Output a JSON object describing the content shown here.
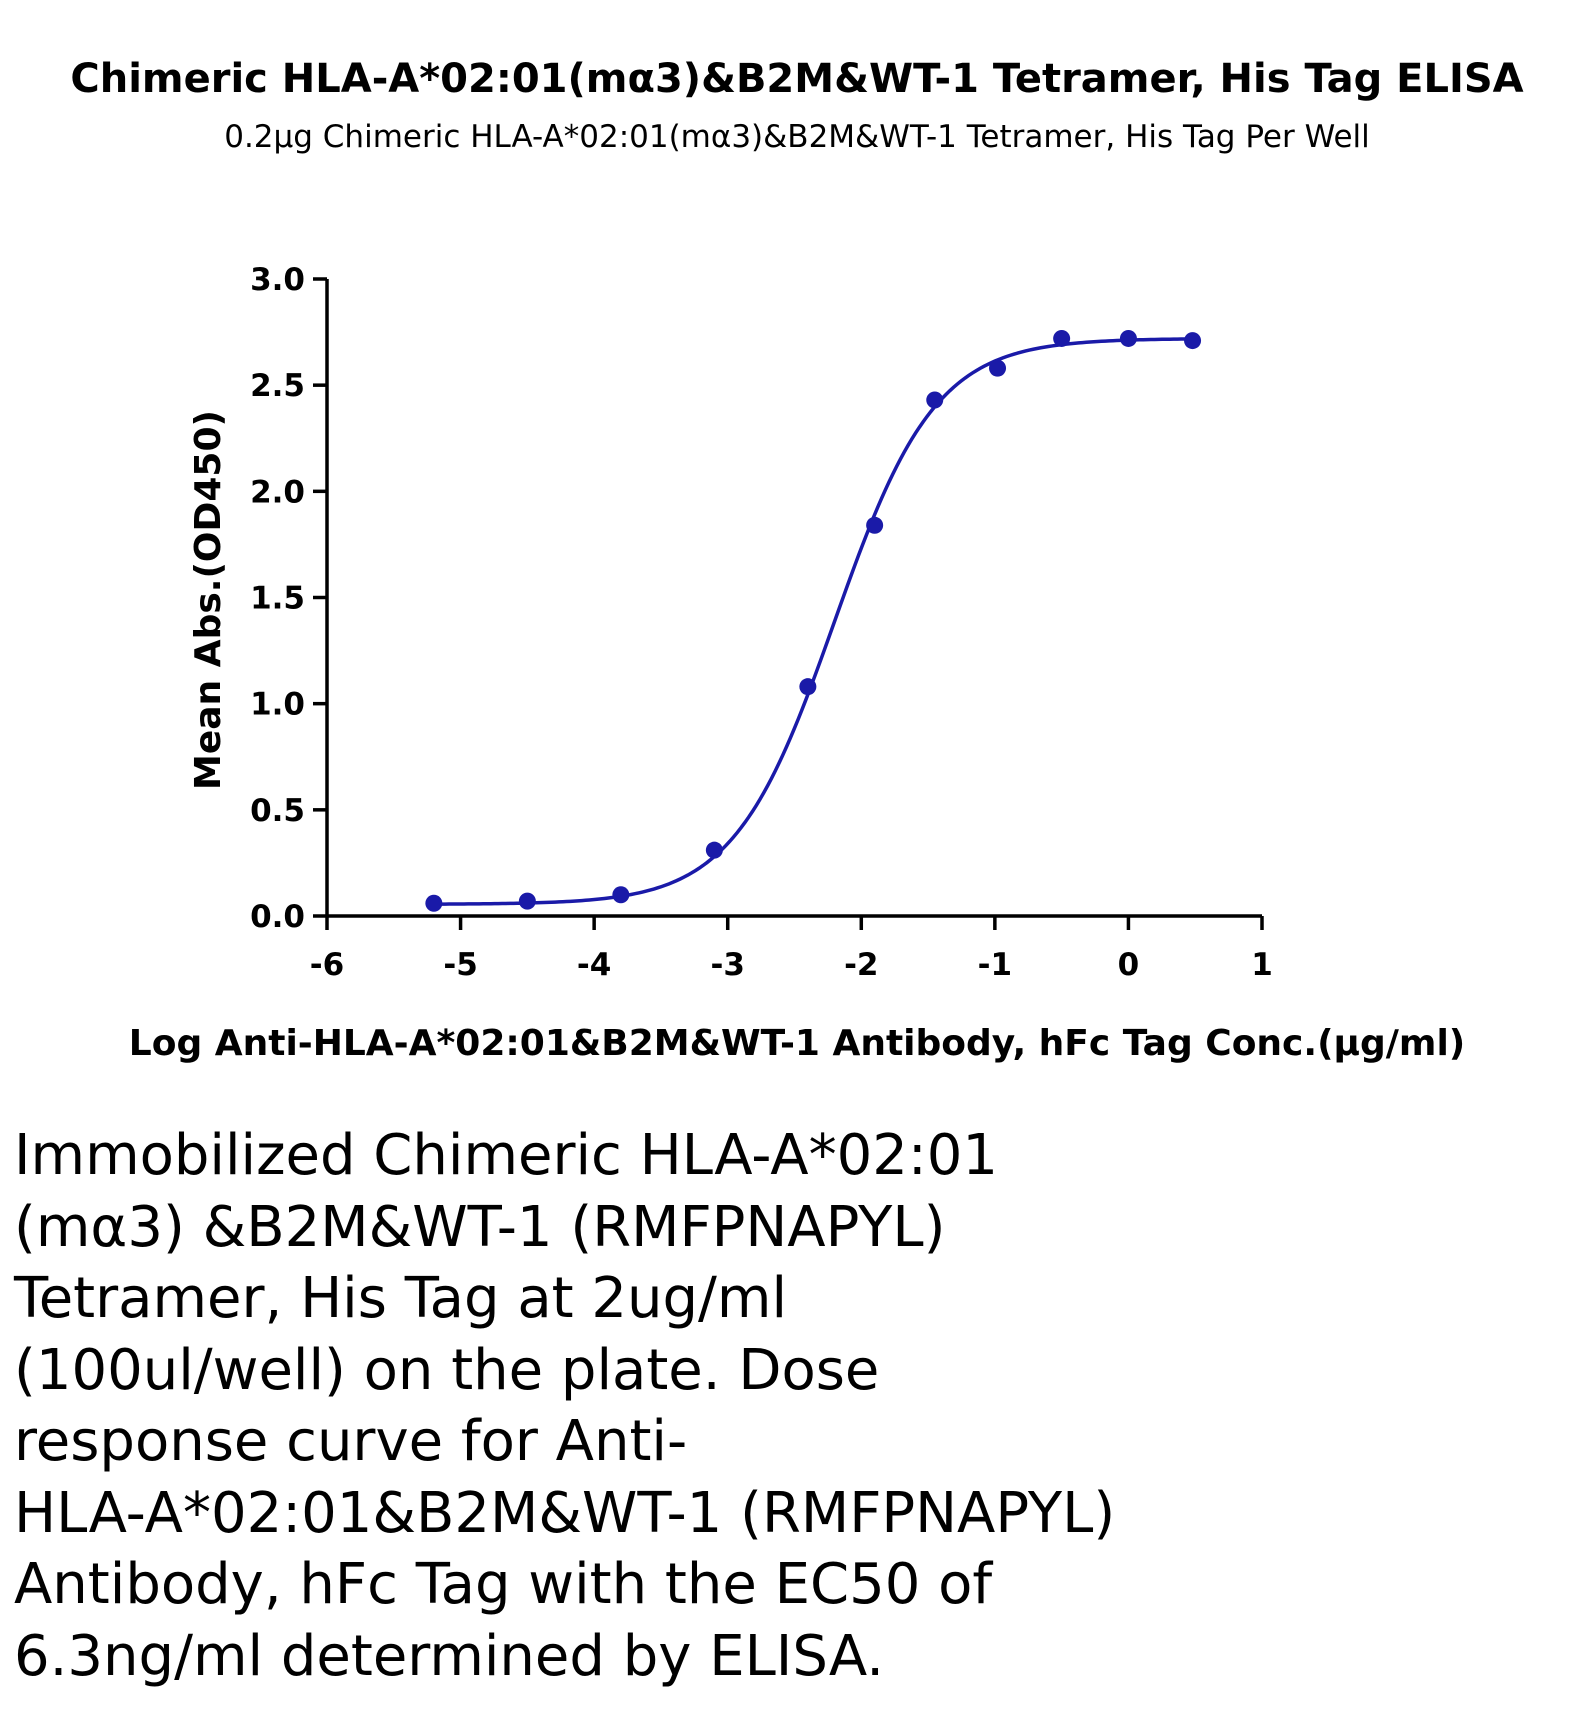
{
  "chart_data": {
    "type": "line",
    "title": "Chimeric HLA-A*02:01(mα3)&B2M&WT-1 Tetramer, His Tag ELISA",
    "subtitle": "0.2μg Chimeric HLA-A*02:01(mα3)&B2M&WT-1 Tetramer, His Tag Per Well",
    "xlabel": "Log Anti-HLA-A*02:01&B2M&WT-1 Antibody, hFc Tag Conc.(μg/ml)",
    "ylabel": "Mean Abs.(OD450)",
    "xlim": [
      -6,
      1
    ],
    "ylim": [
      0,
      3
    ],
    "x_ticks": [
      "-6",
      "-5",
      "-4",
      "-3",
      "-2",
      "-1",
      "0",
      "1"
    ],
    "y_ticks": [
      "0.0",
      "0.5",
      "1.0",
      "1.5",
      "2.0",
      "2.5",
      "3.0"
    ],
    "grid": false,
    "color": "#1a1aa8",
    "points": {
      "x": [
        -5.2,
        -4.5,
        -3.8,
        -3.1,
        -2.4,
        -1.9,
        -1.45,
        -0.98,
        -0.5,
        0,
        0.48
      ],
      "y": [
        0.06,
        0.07,
        0.1,
        0.31,
        1.08,
        1.84,
        2.43,
        2.58,
        2.72,
        2.72,
        2.71
      ]
    },
    "fit": {
      "bottom": 0.055,
      "top": 2.72,
      "log_ec50": -2.2,
      "hill_slope": 1.15
    }
  },
  "caption": "Immobilized Chimeric HLA-A*02:01\n(mα3) &B2M&WT-1 (RMFPNAPYL)\nTetramer, His Tag at 2ug/ml\n(100ul/well) on the plate. Dose\nresponse curve for Anti-\nHLA-A*02:01&B2M&WT-1 (RMFPNAPYL)\nAntibody, hFc Tag with the EC50 of\n6.3ng/ml determined by ELISA."
}
